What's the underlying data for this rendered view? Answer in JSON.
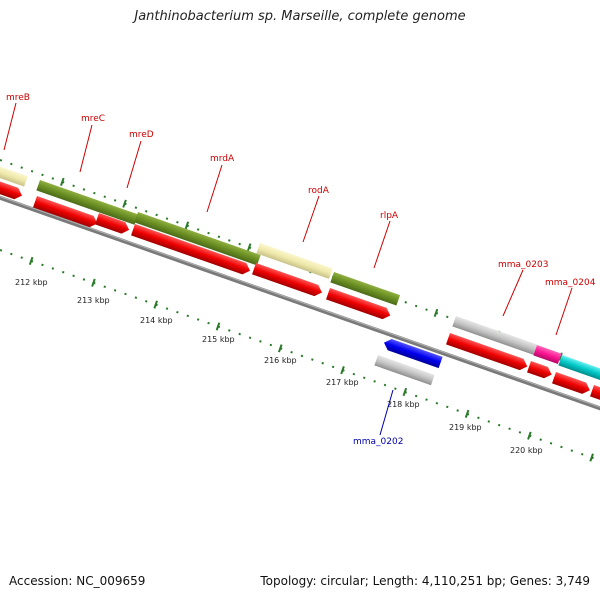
{
  "title": "Janthinobacterium sp. Marseille, complete genome",
  "footer": {
    "accession": "Accession: NC_009659",
    "topology": "Topology: circular; Length: 4,110,251 bp; Genes: 3,749"
  },
  "scale": {
    "tick_labels": [
      "212 kbp",
      "213 kbp",
      "214 kbp",
      "215 kbp",
      "216 kbp",
      "217 kbp",
      "218 kbp",
      "219 kbp",
      "220 kbp"
    ]
  },
  "colors": {
    "forward_gene": "#ee0000",
    "cds_olive": "#6b8e23",
    "cds_pale_yellow": "#eee8aa",
    "cds_gray": "#bdbdbd",
    "cds_magenta": "#ff1493",
    "cds_cyan": "#00c8c8",
    "reverse_gene": "#0000ee",
    "tick_green": "#2a7a2a",
    "label_red": "#cc0000",
    "label_blue": "#0000aa",
    "backbone": "#808080"
  },
  "gene_labels": [
    {
      "name": "mreB",
      "color": "red"
    },
    {
      "name": "mreC",
      "color": "red"
    },
    {
      "name": "mreD",
      "color": "red"
    },
    {
      "name": "mrdA",
      "color": "red"
    },
    {
      "name": "rodA",
      "color": "red"
    },
    {
      "name": "rlpA",
      "color": "red"
    },
    {
      "name": "mma_0203",
      "color": "red"
    },
    {
      "name": "mma_0204",
      "color": "red"
    },
    {
      "name": "mma_0202",
      "color": "blue"
    }
  ]
}
